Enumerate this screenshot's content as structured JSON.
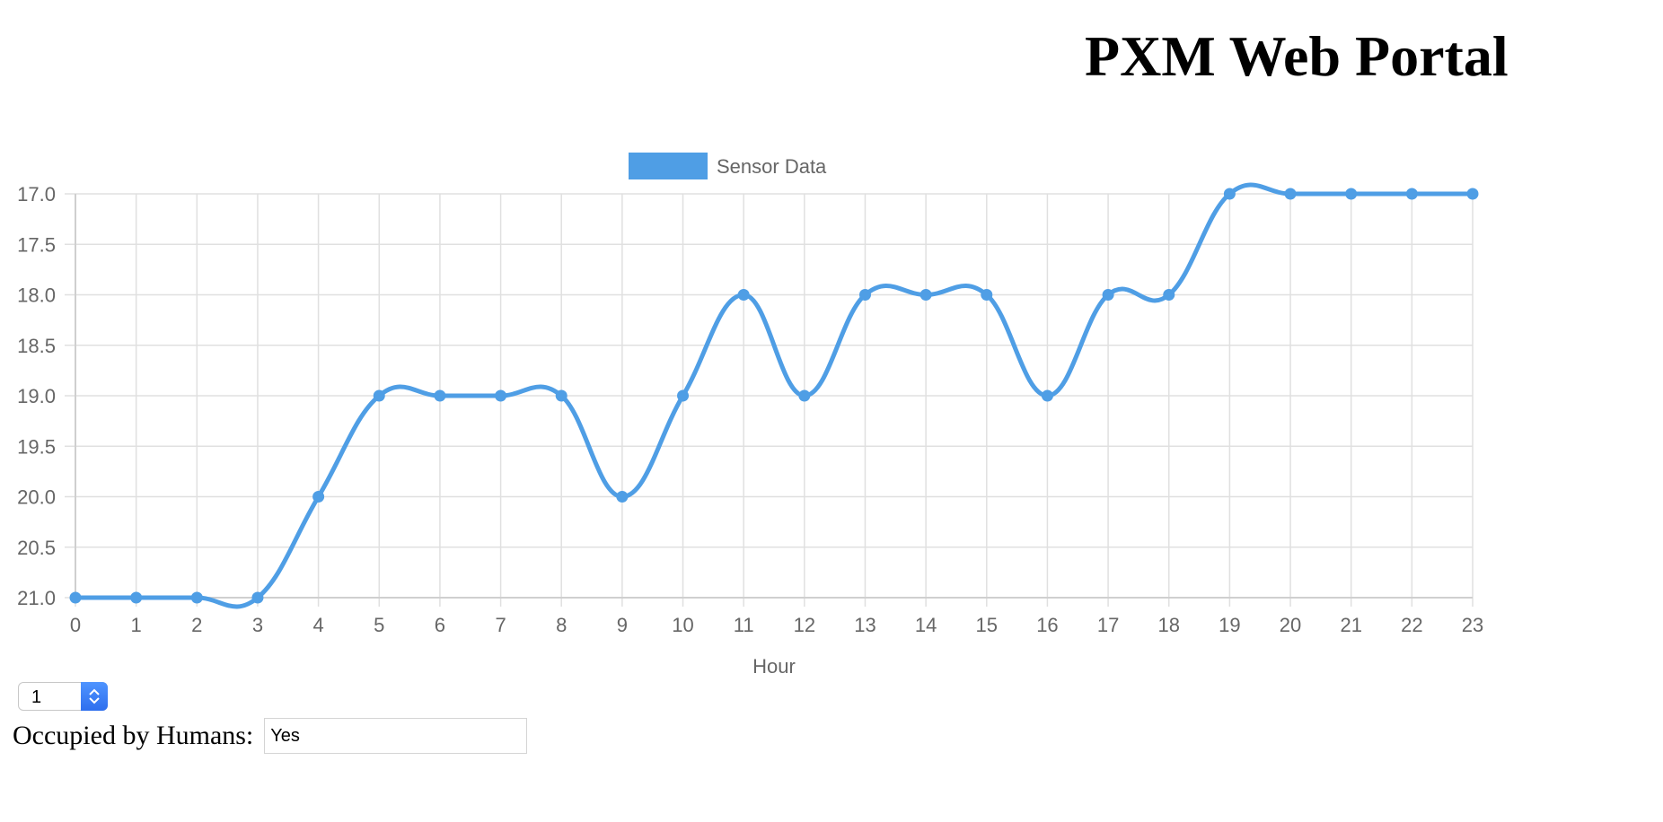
{
  "page": {
    "title": "PXM Web Portal"
  },
  "chart_data": {
    "type": "line",
    "title": "",
    "xlabel": "Hour",
    "ylabel": "",
    "x": [
      0,
      1,
      2,
      3,
      4,
      5,
      6,
      7,
      8,
      9,
      10,
      11,
      12,
      13,
      14,
      15,
      16,
      17,
      18,
      19,
      20,
      21,
      22,
      23
    ],
    "series": [
      {
        "name": "Sensor Data",
        "color": "#4f9ee5",
        "values": [
          21,
          21,
          21,
          21,
          20,
          19,
          19,
          19,
          19,
          20,
          19,
          18,
          19,
          18,
          18,
          18,
          19,
          18,
          18,
          17,
          17,
          17,
          17,
          17
        ]
      }
    ],
    "yticks": [
      "17.0",
      "17.5",
      "18.0",
      "18.5",
      "19.0",
      "19.5",
      "20.0",
      "20.5",
      "21.0"
    ],
    "ylim": [
      17.0,
      21.0
    ],
    "y_reversed": true,
    "grid": true,
    "legend": "top"
  },
  "controls": {
    "select_value": "1",
    "occupied_label": "Occupied by Humans:",
    "occupied_value": "Yes"
  }
}
